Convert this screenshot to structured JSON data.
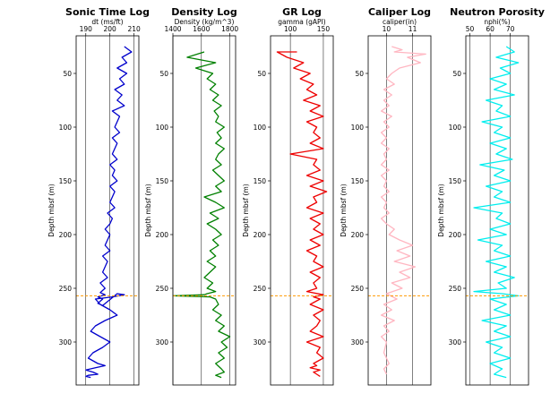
{
  "chart_data": [
    {
      "type": "line",
      "title": "Sonic Time Log",
      "xlabel": "dt (ms/ft)",
      "ylabel": "Depth mbsf (m)",
      "x_ticks": [
        190,
        200,
        210
      ],
      "xlim": [
        186,
        212
      ],
      "y_ticks": [
        50,
        100,
        150,
        200,
        250,
        300
      ],
      "ylim": [
        340,
        15
      ],
      "y_inverted": true,
      "grid": "vertical gridlines at x ticks",
      "color": "#0000cc",
      "series": [
        {
          "x": [
            206,
            209,
            205,
            207,
            203,
            207,
            204,
            206,
            202,
            205,
            203,
            206,
            201,
            204,
            203,
            202,
            204,
            201,
            203,
            202,
            201,
            203,
            200,
            202,
            201,
            203,
            200,
            202,
            201,
            200,
            202,
            199,
            201,
            200,
            198,
            200,
            199,
            198,
            200,
            197,
            199,
            198,
            197,
            199,
            196,
            198,
            197,
            196,
            198,
            195,
            197,
            196,
            195,
            197,
            203,
            206,
            201,
            194,
            196,
            200,
            203,
            198,
            194,
            192,
            196,
            200,
            197,
            193,
            191,
            195,
            198,
            194,
            190,
            193,
            195,
            191,
            190,
            192
          ],
          "y": [
            25,
            30,
            35,
            40,
            45,
            50,
            55,
            60,
            65,
            70,
            75,
            80,
            85,
            90,
            95,
            100,
            105,
            110,
            115,
            120,
            125,
            130,
            135,
            140,
            145,
            150,
            155,
            160,
            165,
            170,
            175,
            180,
            185,
            190,
            195,
            200,
            205,
            210,
            215,
            220,
            225,
            230,
            235,
            240,
            245,
            250,
            252,
            254,
            256,
            258,
            260,
            262,
            264,
            266,
            255,
            256,
            258,
            260,
            265,
            270,
            275,
            280,
            285,
            290,
            295,
            300,
            305,
            310,
            315,
            320,
            322,
            324,
            326,
            328,
            330,
            331,
            332,
            333
          ]
        }
      ],
      "reference_lines": [
        {
          "y": 257,
          "color": "#ff9900",
          "style": "dashed"
        }
      ]
    },
    {
      "type": "line",
      "title": "Density Log",
      "xlabel": "Density (kg/m^3)",
      "ylabel": "Depth mbsf (m)",
      "x_ticks": [
        1400,
        1600,
        1800
      ],
      "xlim": [
        1400,
        1840
      ],
      "y_ticks": [
        50,
        100,
        150,
        200,
        250,
        300
      ],
      "ylim": [
        340,
        15
      ],
      "y_inverted": true,
      "grid": "vertical gridlines at x ticks",
      "color": "#008000",
      "series": [
        {
          "x": [
            1620,
            1500,
            1700,
            1560,
            1680,
            1640,
            1700,
            1660,
            1720,
            1680,
            1740,
            1690,
            1720,
            1700,
            1760,
            1710,
            1740,
            1700,
            1760,
            1720,
            1700,
            1740,
            1680,
            1720,
            1760,
            1700,
            1740,
            1620,
            1700,
            1760,
            1660,
            1720,
            1640,
            1700,
            1740,
            1680,
            1720,
            1660,
            1700,
            1640,
            1700,
            1660,
            1620,
            1680,
            1640,
            1700,
            1640,
            1620,
            1400,
            1660,
            1700,
            1720,
            1680,
            1740,
            1700,
            1760,
            1720,
            1800,
            1740,
            1780,
            1720,
            1760,
            1700,
            1740,
            1760,
            1700,
            1740
          ],
          "y": [
            30,
            35,
            40,
            45,
            50,
            55,
            60,
            65,
            70,
            75,
            80,
            85,
            90,
            95,
            100,
            105,
            110,
            115,
            120,
            125,
            130,
            135,
            140,
            145,
            150,
            155,
            160,
            165,
            170,
            175,
            180,
            185,
            190,
            195,
            200,
            205,
            210,
            215,
            220,
            225,
            230,
            235,
            240,
            245,
            250,
            253,
            255,
            256,
            257,
            258,
            260,
            265,
            270,
            275,
            280,
            285,
            290,
            295,
            300,
            305,
            310,
            315,
            320,
            325,
            328,
            331,
            333
          ]
        }
      ],
      "reference_lines": [
        {
          "y": 257,
          "color": "#ff9900",
          "style": "dashed"
        }
      ]
    },
    {
      "type": "line",
      "title": "GR Log",
      "xlabel": "gamma (gAPI)",
      "ylabel": "Depth mbsf (m)",
      "x_ticks": [
        100,
        150
      ],
      "xlim": [
        70,
        165
      ],
      "y_ticks": [
        50,
        100,
        150,
        200,
        250,
        300
      ],
      "ylim": [
        340,
        15
      ],
      "y_inverted": true,
      "grid": "vertical gridlines at x ticks",
      "color": "#ee0000",
      "series": [
        {
          "x": [
            110,
            80,
            95,
            120,
            105,
            130,
            115,
            135,
            125,
            140,
            120,
            145,
            130,
            150,
            125,
            140,
            135,
            145,
            130,
            150,
            100,
            140,
            135,
            145,
            125,
            150,
            130,
            155,
            135,
            140,
            125,
            150,
            130,
            145,
            135,
            150,
            130,
            145,
            125,
            140,
            135,
            150,
            130,
            145,
            135,
            140,
            125,
            150,
            135,
            145,
            130,
            150,
            135,
            145,
            140,
            130,
            150,
            125,
            145,
            140,
            150,
            135,
            140,
            130,
            145,
            135,
            140,
            145
          ],
          "y": [
            30,
            30,
            35,
            40,
            45,
            50,
            55,
            60,
            65,
            70,
            75,
            80,
            85,
            90,
            95,
            100,
            105,
            110,
            115,
            120,
            125,
            130,
            135,
            140,
            145,
            150,
            155,
            160,
            165,
            170,
            175,
            180,
            185,
            190,
            195,
            200,
            205,
            210,
            215,
            220,
            225,
            230,
            235,
            240,
            245,
            250,
            253,
            256,
            258,
            260,
            265,
            270,
            275,
            280,
            285,
            290,
            295,
            300,
            305,
            310,
            315,
            320,
            322,
            324,
            326,
            328,
            330,
            332
          ]
        }
      ],
      "reference_lines": [
        {
          "y": 257,
          "color": "#ff9900",
          "style": "dashed"
        }
      ]
    },
    {
      "type": "line",
      "title": "Caliper Log",
      "xlabel": "caliper(in)",
      "ylabel": "Depth mbsf (m)",
      "x_ticks": [
        10,
        11
      ],
      "xlim": [
        9.3,
        11.7
      ],
      "y_ticks": [
        50,
        100,
        150,
        200,
        250,
        300
      ],
      "ylim": [
        340,
        15
      ],
      "y_inverted": true,
      "grid": "vertical gridlines at x ticks",
      "color": "#ffb6c1",
      "series": [
        {
          "x": [
            10.2,
            10.6,
            10.3,
            11.5,
            10.8,
            11.3,
            10.5,
            10.2,
            10.0,
            10.3,
            9.9,
            10.2,
            9.9,
            10.1,
            9.8,
            10.2,
            9.9,
            10.1,
            9.8,
            10.0,
            9.8,
            10.1,
            9.9,
            10.0,
            9.8,
            10.1,
            9.8,
            10.0,
            9.9,
            10.1,
            9.8,
            10.0,
            9.9,
            10.1,
            9.8,
            10.0,
            10.3,
            10.1,
            10.5,
            11.0,
            10.4,
            10.9,
            10.3,
            11.1,
            10.5,
            10.9,
            10.2,
            10.6,
            10.0,
            10.4,
            9.9,
            10.2,
            9.8,
            10.3,
            9.9,
            10.1,
            9.8,
            10.0,
            9.9,
            10.1,
            9.9,
            10.0
          ],
          "y": [
            25,
            28,
            30,
            32,
            35,
            40,
            45,
            50,
            55,
            60,
            65,
            70,
            75,
            80,
            85,
            90,
            95,
            100,
            105,
            110,
            115,
            120,
            125,
            130,
            135,
            140,
            145,
            150,
            155,
            160,
            165,
            170,
            175,
            180,
            185,
            190,
            195,
            200,
            205,
            210,
            215,
            220,
            225,
            230,
            235,
            240,
            245,
            250,
            255,
            260,
            265,
            270,
            275,
            280,
            285,
            290,
            295,
            300,
            310,
            320,
            325,
            330
          ]
        }
      ],
      "reference_lines": [
        {
          "y": 257,
          "color": "#ff9900",
          "style": "dashed"
        }
      ]
    },
    {
      "type": "line",
      "title": "Neutron Porosity",
      "xlabel": "nphi(%)",
      "ylabel": "Depth mbsf (m)",
      "x_ticks": [
        50,
        60,
        70
      ],
      "xlim": [
        48,
        79
      ],
      "y_ticks": [
        50,
        100,
        150,
        200,
        250,
        300
      ],
      "ylim": [
        340,
        15
      ],
      "y_inverted": true,
      "grid": "vertical gridlines at x ticks",
      "color": "#00eeee",
      "series": [
        {
          "x": [
            68,
            72,
            63,
            74,
            65,
            70,
            60,
            68,
            62,
            72,
            58,
            66,
            63,
            70,
            56,
            66,
            62,
            70,
            60,
            68,
            63,
            71,
            55,
            67,
            62,
            70,
            58,
            66,
            62,
            70,
            52,
            66,
            63,
            70,
            60,
            68,
            54,
            66,
            62,
            70,
            58,
            68,
            62,
            72,
            64,
            68,
            52,
            66,
            74,
            60,
            68,
            62,
            70,
            56,
            68,
            62,
            70,
            58,
            66,
            62,
            70,
            60,
            66,
            62,
            68
          ],
          "y": [
            25,
            30,
            35,
            40,
            45,
            50,
            55,
            60,
            65,
            70,
            75,
            80,
            85,
            90,
            95,
            100,
            105,
            110,
            115,
            120,
            125,
            130,
            135,
            140,
            145,
            150,
            155,
            160,
            165,
            170,
            175,
            180,
            185,
            190,
            195,
            200,
            205,
            210,
            215,
            220,
            225,
            230,
            235,
            240,
            245,
            250,
            253,
            255,
            257,
            260,
            265,
            270,
            275,
            280,
            285,
            290,
            295,
            300,
            305,
            310,
            315,
            320,
            325,
            330,
            333
          ]
        }
      ],
      "reference_lines": [
        {
          "y": 257,
          "color": "#ff9900",
          "style": "dashed"
        }
      ]
    }
  ]
}
